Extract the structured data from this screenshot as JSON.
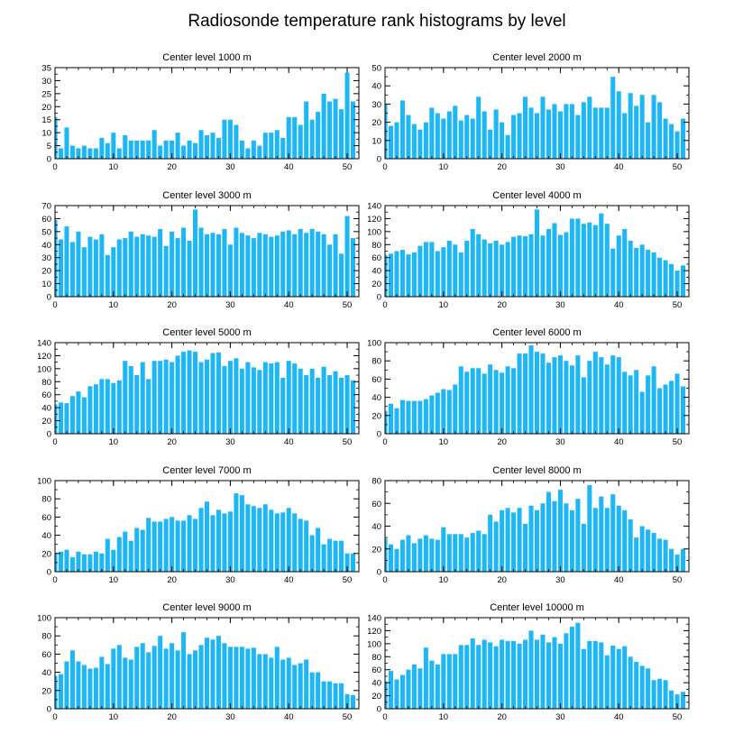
{
  "title": "Radiosonde temperature rank histograms by level",
  "bar_color": "#1EB7F5",
  "chart_data": [
    {
      "type": "bar",
      "title": "Center level 1000 m",
      "xlim": [
        0,
        52
      ],
      "ylim": [
        0,
        35
      ],
      "xticks": [
        0,
        10,
        20,
        30,
        40,
        50
      ],
      "yticks": [
        0,
        5,
        10,
        15,
        20,
        25,
        30,
        35
      ],
      "values": [
        16,
        4,
        12,
        5,
        4,
        5,
        4,
        4,
        8,
        6,
        10,
        4,
        9,
        7,
        7,
        7,
        7,
        11,
        5,
        7,
        7,
        10,
        5,
        7,
        6,
        11,
        9,
        10,
        8,
        15,
        15,
        13,
        7,
        4,
        7,
        5,
        10,
        10,
        11,
        8,
        16,
        16,
        13,
        22,
        15,
        18,
        25,
        22,
        23,
        19,
        33,
        22
      ]
    },
    {
      "type": "bar",
      "title": "Center level 2000 m",
      "xlim": [
        0,
        52
      ],
      "ylim": [
        0,
        50
      ],
      "xticks": [
        0,
        10,
        20,
        30,
        40,
        50
      ],
      "yticks": [
        0,
        10,
        20,
        30,
        40,
        50
      ],
      "values": [
        30,
        18,
        20,
        32,
        24,
        19,
        16,
        20,
        28,
        25,
        22,
        26,
        29,
        21,
        24,
        22,
        34,
        26,
        16,
        27,
        20,
        13,
        24,
        25,
        34,
        28,
        25,
        34,
        27,
        30,
        26,
        30,
        30,
        24,
        31,
        34,
        28,
        28,
        28,
        45,
        37,
        25,
        36,
        29,
        35,
        20,
        35,
        31,
        22,
        19,
        15,
        22
      ]
    },
    {
      "type": "bar",
      "title": "Center level 3000 m",
      "xlim": [
        0,
        52
      ],
      "ylim": [
        0,
        70
      ],
      "xticks": [
        0,
        10,
        20,
        30,
        40,
        50
      ],
      "yticks": [
        0,
        10,
        20,
        30,
        40,
        50,
        60,
        70
      ],
      "values": [
        59,
        44,
        54,
        42,
        50,
        38,
        46,
        44,
        48,
        32,
        38,
        44,
        45,
        50,
        46,
        48,
        47,
        46,
        52,
        39,
        50,
        45,
        53,
        43,
        67,
        53,
        48,
        49,
        48,
        52,
        40,
        53,
        49,
        47,
        45,
        49,
        48,
        46,
        47,
        50,
        51,
        48,
        52,
        49,
        52,
        50,
        48,
        40,
        48,
        33,
        62,
        45
      ]
    },
    {
      "type": "bar",
      "title": "Center level 4000 m",
      "xlim": [
        0,
        52
      ],
      "ylim": [
        0,
        140
      ],
      "xticks": [
        0,
        10,
        20,
        30,
        40,
        50
      ],
      "yticks": [
        0,
        20,
        40,
        60,
        80,
        100,
        120,
        140
      ],
      "values": [
        64,
        66,
        70,
        72,
        65,
        68,
        78,
        84,
        84,
        70,
        76,
        86,
        80,
        68,
        86,
        104,
        96,
        88,
        82,
        86,
        80,
        84,
        92,
        94,
        93,
        96,
        134,
        94,
        104,
        113,
        95,
        99,
        120,
        120,
        112,
        114,
        110,
        128,
        112,
        74,
        94,
        104,
        86,
        75,
        80,
        72,
        68,
        60,
        56,
        50,
        40,
        48
      ]
    },
    {
      "type": "bar",
      "title": "Center level 5000 m",
      "xlim": [
        0,
        52
      ],
      "ylim": [
        0,
        140
      ],
      "xticks": [
        0,
        10,
        20,
        30,
        40,
        50
      ],
      "yticks": [
        0,
        20,
        40,
        60,
        80,
        100,
        120,
        140
      ],
      "values": [
        45,
        48,
        47,
        58,
        65,
        56,
        73,
        76,
        84,
        84,
        78,
        82,
        112,
        104,
        90,
        110,
        84,
        112,
        112,
        114,
        110,
        120,
        126,
        128,
        126,
        110,
        114,
        124,
        125,
        104,
        112,
        116,
        100,
        110,
        102,
        98,
        110,
        108,
        110,
        86,
        112,
        108,
        100,
        90,
        100,
        86,
        103,
        90,
        96,
        86,
        90,
        82
      ]
    },
    {
      "type": "bar",
      "title": "Center level 6000 m",
      "xlim": [
        0,
        52
      ],
      "ylim": [
        0,
        100
      ],
      "xticks": [
        0,
        10,
        20,
        30,
        40,
        50
      ],
      "yticks": [
        0,
        20,
        40,
        60,
        80,
        100
      ],
      "values": [
        25,
        33,
        28,
        37,
        36,
        36,
        36,
        38,
        42,
        45,
        49,
        48,
        54,
        74,
        68,
        72,
        72,
        66,
        76,
        70,
        67,
        74,
        72,
        88,
        88,
        97,
        90,
        88,
        78,
        84,
        86,
        80,
        75,
        86,
        62,
        80,
        90,
        84,
        76,
        86,
        84,
        68,
        64,
        70,
        46,
        64,
        74,
        50,
        54,
        58,
        66,
        52
      ]
    },
    {
      "type": "bar",
      "title": "Center level 7000 m",
      "xlim": [
        0,
        52
      ],
      "ylim": [
        0,
        100
      ],
      "xticks": [
        0,
        10,
        20,
        30,
        40,
        50
      ],
      "yticks": [
        0,
        20,
        40,
        60,
        80,
        100
      ],
      "values": [
        20,
        22,
        24,
        16,
        22,
        19,
        19,
        22,
        20,
        36,
        24,
        38,
        44,
        34,
        48,
        46,
        59,
        55,
        55,
        58,
        60,
        56,
        56,
        62,
        58,
        70,
        77,
        62,
        68,
        64,
        66,
        86,
        84,
        74,
        72,
        70,
        74,
        68,
        64,
        65,
        70,
        64,
        58,
        56,
        40,
        48,
        30,
        36,
        34,
        34,
        20,
        20
      ]
    },
    {
      "type": "bar",
      "title": "Center level 8000 m",
      "xlim": [
        0,
        52
      ],
      "ylim": [
        0,
        80
      ],
      "xticks": [
        0,
        10,
        20,
        30,
        40,
        50
      ],
      "yticks": [
        0,
        20,
        40,
        60,
        80
      ],
      "values": [
        29,
        24,
        20,
        28,
        32,
        25,
        29,
        32,
        29,
        28,
        39,
        33,
        33,
        33,
        30,
        34,
        36,
        33,
        50,
        44,
        54,
        56,
        52,
        56,
        42,
        58,
        54,
        60,
        70,
        62,
        72,
        60,
        54,
        64,
        42,
        76,
        56,
        66,
        56,
        68,
        58,
        54,
        46,
        30,
        40,
        37,
        34,
        29,
        28,
        20,
        15,
        20
      ]
    },
    {
      "type": "bar",
      "title": "Center level 9000 m",
      "xlim": [
        0,
        52
      ],
      "ylim": [
        0,
        100
      ],
      "xticks": [
        0,
        10,
        20,
        30,
        40,
        50
      ],
      "yticks": [
        0,
        20,
        40,
        60,
        80,
        100
      ],
      "values": [
        36,
        38,
        52,
        64,
        52,
        48,
        44,
        45,
        57,
        49,
        66,
        70,
        56,
        54,
        68,
        72,
        62,
        69,
        80,
        66,
        72,
        64,
        84,
        60,
        64,
        70,
        78,
        76,
        80,
        72,
        68,
        68,
        68,
        66,
        67,
        60,
        60,
        56,
        68,
        54,
        56,
        48,
        50,
        54,
        40,
        40,
        30,
        30,
        28,
        28,
        16,
        15
      ]
    },
    {
      "type": "bar",
      "title": "Center level 10000 m",
      "xlim": [
        0,
        52
      ],
      "ylim": [
        0,
        140
      ],
      "xticks": [
        0,
        10,
        20,
        30,
        40,
        50
      ],
      "yticks": [
        0,
        20,
        40,
        60,
        80,
        100,
        120,
        140
      ],
      "values": [
        42,
        58,
        45,
        52,
        60,
        68,
        62,
        94,
        74,
        68,
        84,
        84,
        84,
        98,
        98,
        108,
        98,
        106,
        102,
        96,
        106,
        104,
        104,
        100,
        106,
        120,
        106,
        114,
        102,
        110,
        100,
        116,
        126,
        132,
        92,
        104,
        104,
        102,
        82,
        97,
        92,
        96,
        80,
        72,
        66,
        62,
        44,
        46,
        44,
        28,
        22,
        26
      ]
    }
  ]
}
